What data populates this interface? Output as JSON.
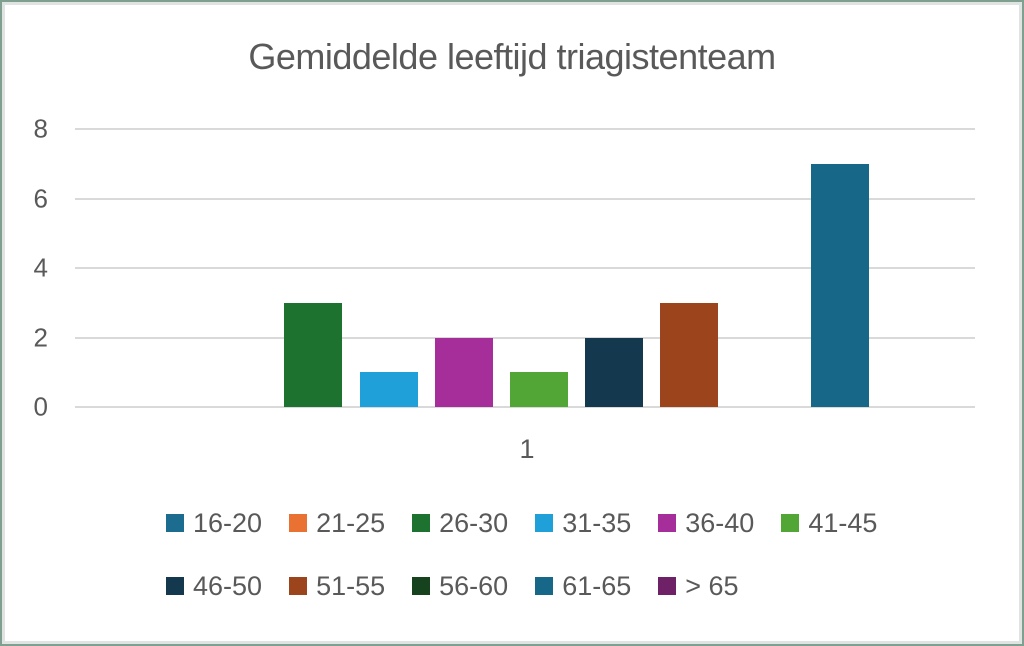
{
  "frame": {
    "border_color": "#7FA090",
    "background": "#ffffff"
  },
  "chart_data": {
    "type": "bar",
    "title": "Gemiddelde leeftijd triagistenteam",
    "xlabel": "",
    "ylabel": "",
    "categories": [
      "1"
    ],
    "series": [
      {
        "name": "16-20",
        "values": [
          0
        ],
        "color": "#1B6C8F"
      },
      {
        "name": "21-25",
        "values": [
          0
        ],
        "color": "#E97132"
      },
      {
        "name": "26-30",
        "values": [
          3
        ],
        "color": "#1D7230"
      },
      {
        "name": "31-35",
        "values": [
          1
        ],
        "color": "#1FA0D8"
      },
      {
        "name": "36-40",
        "values": [
          2
        ],
        "color": "#A62E9B"
      },
      {
        "name": "41-45",
        "values": [
          1
        ],
        "color": "#52A636"
      },
      {
        "name": "46-50",
        "values": [
          2
        ],
        "color": "#14384E"
      },
      {
        "name": "51-55",
        "values": [
          3
        ],
        "color": "#9C451C"
      },
      {
        "name": "56-60",
        "values": [
          0
        ],
        "color": "#17421E"
      },
      {
        "name": "61-65",
        "values": [
          7
        ],
        "color": "#176788"
      },
      {
        "name": "> 65",
        "values": [
          0
        ],
        "color": "#6E2167"
      }
    ],
    "ylim": [
      0,
      8
    ],
    "yticks": [
      0,
      2,
      4,
      6,
      8
    ],
    "grid": true,
    "gridline_color": "#D9D9D9",
    "text_color": "#595959",
    "legend_position": "bottom",
    "legend_rows": [
      [
        "16-20",
        "21-25",
        "26-30",
        "31-35",
        "36-40",
        "41-45"
      ],
      [
        "46-50",
        "51-55",
        "56-60",
        "61-65",
        "> 65"
      ]
    ]
  }
}
